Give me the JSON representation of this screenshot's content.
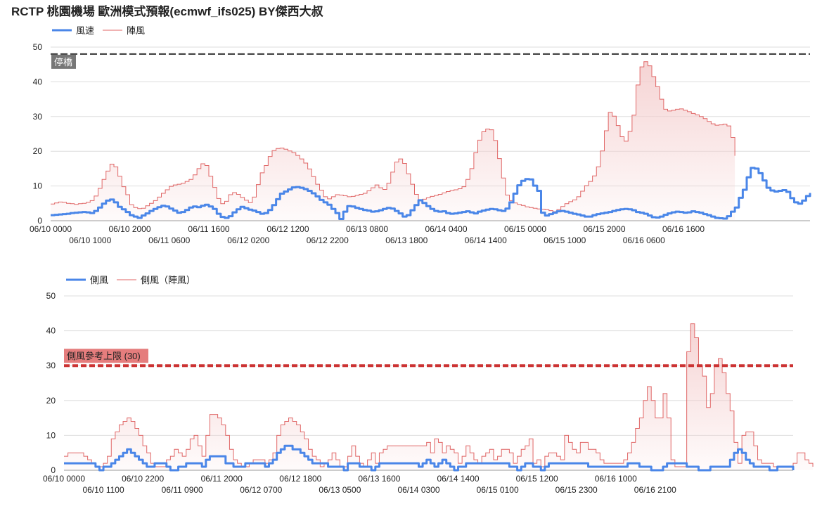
{
  "page_title": "RCTP 桃園機場 歐洲模式預報(ecmwf_ifs025)  BY傑西大叔",
  "colors": {
    "sustained": "#4a86e8",
    "gust": "#e06666",
    "gust_fill": "#f4cccc",
    "limit_line": "#cc3333",
    "dash_line": "#333333",
    "grid": "#dddddd"
  },
  "chart_data": [
    {
      "type": "area",
      "legend_position": "top-left",
      "grid": true,
      "ylim": [
        0,
        50
      ],
      "yticks": [
        0,
        10,
        20,
        30,
        40,
        50
      ],
      "x_start": "06/10 0000",
      "x_step_hours": 1,
      "x_tick_labels_row1": [
        "06/10 0000",
        "06/10 2000",
        "06/11 1600",
        "06/12 1200",
        "06/13 0800",
        "06/14 0400",
        "06/15 0000",
        "06/15 2000",
        "06/16 1600"
      ],
      "x_tick_labels_row2": [
        "06/10 1000",
        "06/11 0600",
        "06/12 0200",
        "06/12 2200",
        "06/13 1800",
        "06/14 1400",
        "06/15 1000",
        "06/16 0600"
      ],
      "reference_line": {
        "value": 48,
        "label": "停橋"
      },
      "series": [
        {
          "name": "風速",
          "style": "step-line",
          "values": [
            1.6,
            1.7,
            1.8,
            1.9,
            2.0,
            2.2,
            2.3,
            2.4,
            2.5,
            2.4,
            2.2,
            2.8,
            3.8,
            4.9,
            5.8,
            6.1,
            5.3,
            4.0,
            3.3,
            2.5,
            1.6,
            1.2,
            0.8,
            1.5,
            2.1,
            2.8,
            3.4,
            3.9,
            4.3,
            4.1,
            3.5,
            2.9,
            2.3,
            2.5,
            3.1,
            3.8,
            4.1,
            3.9,
            4.3,
            4.6,
            4.1,
            3.4,
            2.0,
            1.1,
            0.8,
            1.3,
            2.4,
            3.3,
            4.0,
            3.6,
            3.2,
            2.9,
            2.5,
            2.0,
            2.2,
            3.1,
            4.5,
            6.2,
            7.8,
            8.4,
            9.0,
            9.6,
            9.7,
            9.5,
            9.1,
            8.6,
            7.9,
            7.0,
            6.0,
            5.3,
            4.6,
            3.4,
            2.2,
            0.5,
            2.6,
            4.2,
            4.1,
            3.7,
            3.4,
            3.1,
            2.9,
            2.6,
            2.7,
            3.0,
            3.4,
            3.7,
            3.5,
            2.8,
            2.1,
            1.2,
            1.6,
            3.0,
            4.5,
            5.9,
            5.1,
            4.2,
            3.4,
            2.8,
            2.6,
            2.7,
            2.2,
            2.0,
            2.1,
            2.3,
            2.5,
            2.7,
            2.4,
            2.1,
            2.6,
            2.9,
            3.2,
            3.4,
            3.3,
            3.0,
            2.8,
            3.5,
            5.3,
            7.8,
            10.2,
            11.5,
            12.0,
            11.9,
            10.1,
            8.6,
            2.3,
            1.5,
            1.9,
            2.3,
            2.7,
            2.8,
            2.6,
            2.3,
            2.0,
            1.8,
            1.5,
            1.2,
            1.2,
            1.6,
            1.9,
            2.1,
            2.3,
            2.5,
            2.8,
            3.1,
            3.3,
            3.4,
            3.3,
            3.0,
            2.5,
            2.3,
            2.0,
            1.5,
            1.0,
            0.9,
            1.2,
            1.7,
            2.1,
            2.4,
            2.6,
            2.5,
            2.3,
            2.4,
            2.7,
            2.5,
            2.3,
            1.9,
            1.6,
            1.2,
            0.8,
            0.7,
            0.6,
            1.3,
            2.6,
            3.8,
            6.6,
            8.9,
            12.5,
            15.2,
            15.0,
            13.7,
            11.6,
            9.5,
            8.7,
            8.4,
            8.6,
            8.8,
            8.3,
            6.5,
            5.3,
            4.9,
            5.8,
            7.1,
            8.0
          ]
        },
        {
          "name": "陣風",
          "style": "step-area",
          "values": [
            4.8,
            5.1,
            5.4,
            5.3,
            5.0,
            4.9,
            4.7,
            4.9,
            5.0,
            5.3,
            5.8,
            7.1,
            9.3,
            11.9,
            14.3,
            16.3,
            15.5,
            12.8,
            9.8,
            7.5,
            4.6,
            3.8,
            3.5,
            3.6,
            4.3,
            5.0,
            5.8,
            6.8,
            7.9,
            8.9,
            9.9,
            10.3,
            10.5,
            10.8,
            11.3,
            11.9,
            13.2,
            15.0,
            16.4,
            15.9,
            12.8,
            9.6,
            6.4,
            4.9,
            5.6,
            7.5,
            8.1,
            7.6,
            6.7,
            5.9,
            5.2,
            6.8,
            10.4,
            13.8,
            15.9,
            18.5,
            20.2,
            20.8,
            20.9,
            20.6,
            20.1,
            19.6,
            18.8,
            17.8,
            16.6,
            14.9,
            12.7,
            10.5,
            8.8,
            6.9,
            6.3,
            6.9,
            7.5,
            7.4,
            7.2,
            6.9,
            7.0,
            7.3,
            7.6,
            7.9,
            8.6,
            9.5,
            10.3,
            9.5,
            9.0,
            10.8,
            14.0,
            16.9,
            17.8,
            16.5,
            13.5,
            10.5,
            7.6,
            5.7,
            6.2,
            6.6,
            7.0,
            7.3,
            7.6,
            8.0,
            8.4,
            8.7,
            8.9,
            9.2,
            9.8,
            11.9,
            15.0,
            19.6,
            23.2,
            25.6,
            26.4,
            26.2,
            23.1,
            17.9,
            12.3,
            7.4,
            5.8,
            5.1,
            4.7,
            4.4,
            4.0,
            3.8,
            3.6,
            3.4,
            3.3,
            3.2,
            2.9,
            2.6,
            3.2,
            4.1,
            4.9,
            5.5,
            6.0,
            6.9,
            8.5,
            10.1,
            11.3,
            12.9,
            15.5,
            20.1,
            25.9,
            31.2,
            30.1,
            27.4,
            24.2,
            22.9,
            25.7,
            30.4,
            39.1,
            44.3,
            45.8,
            44.6,
            41.5,
            38.6,
            35.0,
            32.1,
            31.6,
            31.8,
            32.1,
            32.2,
            31.8,
            31.4,
            30.9,
            30.5,
            30.0,
            29.4,
            28.6,
            27.9,
            27.5,
            27.6,
            27.8,
            27.3,
            24.0,
            18.7
          ]
        }
      ]
    },
    {
      "type": "area",
      "legend_position": "top-left",
      "grid": true,
      "ylim": [
        0,
        50
      ],
      "yticks": [
        0,
        10,
        20,
        30,
        40,
        50
      ],
      "x_start": "06/10 0000",
      "x_step_hours": 1,
      "x_tick_labels_row1": [
        "06/10 0000",
        "06/10 2200",
        "06/11 2000",
        "06/12 1800",
        "06/13 1600",
        "06/14 1400",
        "06/15 1200",
        "06/16 1000"
      ],
      "x_tick_labels_row2": [
        "06/10 1100",
        "06/11 0900",
        "06/12 0700",
        "06/13 0500",
        "06/14 0300",
        "06/15 0100",
        "06/15 2300",
        "06/16 2100"
      ],
      "reference_line": {
        "value": 30,
        "label": "側風參考上限 (30)"
      },
      "series": [
        {
          "name": "側風",
          "style": "step-line",
          "values": [
            2,
            2,
            2,
            2,
            2,
            2,
            2,
            2,
            1,
            0,
            1,
            1,
            2,
            3,
            4,
            5,
            6,
            5,
            4,
            3,
            2,
            1,
            1,
            2,
            2,
            2,
            1,
            0,
            0,
            1,
            1,
            2,
            2,
            2,
            2,
            1,
            3,
            4,
            4,
            4,
            4,
            2,
            2,
            1,
            1,
            1,
            2,
            2,
            2,
            2,
            2,
            1,
            2,
            3,
            5,
            6,
            7,
            7,
            6,
            6,
            5,
            4,
            3,
            2,
            2,
            2,
            2,
            1,
            1,
            1,
            1,
            0,
            2,
            2,
            2,
            1,
            1,
            1,
            0,
            1,
            2,
            2,
            2,
            2,
            2,
            2,
            2,
            2,
            2,
            2,
            1,
            2,
            3,
            2,
            1,
            2,
            3,
            2,
            1,
            0,
            1,
            1,
            2,
            2,
            2,
            2,
            2,
            2,
            2,
            2,
            2,
            2,
            2,
            1,
            1,
            0,
            1,
            2,
            2,
            1,
            1,
            0,
            1,
            2,
            2,
            2,
            2,
            2,
            2,
            2,
            2,
            2,
            2,
            1,
            1,
            1,
            1,
            1,
            1,
            1,
            1,
            1,
            1,
            2,
            2,
            2,
            1,
            1,
            1,
            0,
            0,
            0,
            1,
            2,
            2,
            2,
            2,
            2,
            1,
            1,
            1,
            0,
            0,
            0,
            1,
            1,
            1,
            1,
            1,
            3,
            5,
            6,
            5,
            3,
            2,
            1,
            1,
            1,
            1,
            0,
            0,
            1,
            1,
            1,
            1,
            0
          ]
        },
        {
          "name": "側風（陣風）",
          "style": "step-area",
          "values": [
            4,
            5,
            5,
            5,
            5,
            4,
            3,
            2,
            1,
            1,
            2,
            4,
            9,
            11,
            13,
            14,
            15,
            14,
            12,
            10,
            7,
            5,
            2,
            1,
            1,
            1,
            3,
            4,
            6,
            5,
            4,
            6,
            9,
            10,
            7,
            4,
            10,
            16,
            16,
            15,
            13,
            10,
            6,
            3,
            2,
            1,
            1,
            2,
            3,
            3,
            3,
            2,
            3,
            5,
            10,
            13,
            14,
            15,
            14,
            13,
            11,
            9,
            6,
            4,
            3,
            1,
            2,
            3,
            5,
            3,
            1,
            1,
            4,
            7,
            4,
            2,
            1,
            3,
            5,
            2,
            5,
            6,
            7,
            7,
            7,
            7,
            7,
            7,
            7,
            7,
            7,
            7,
            8,
            5,
            9,
            8,
            5,
            7,
            6,
            5,
            2,
            4,
            7,
            5,
            3,
            2,
            4,
            5,
            6,
            3,
            4,
            6,
            6,
            5,
            2,
            4,
            6,
            7,
            9,
            2,
            3,
            1,
            4,
            5,
            5,
            4,
            3,
            10,
            8,
            6,
            5,
            8,
            8,
            6,
            6,
            5,
            3,
            2,
            2,
            2,
            2,
            2,
            3,
            5,
            8,
            12,
            15,
            20,
            24,
            20,
            15,
            15,
            22,
            15,
            3,
            1,
            1,
            1,
            34,
            42,
            38,
            30,
            27,
            18,
            22,
            30,
            32,
            28,
            22,
            17,
            8,
            2,
            10,
            11,
            11,
            7,
            3,
            2,
            2,
            2,
            1,
            1,
            1,
            1,
            1,
            2,
            5,
            5,
            3,
            2,
            1
          ]
        }
      ]
    }
  ]
}
